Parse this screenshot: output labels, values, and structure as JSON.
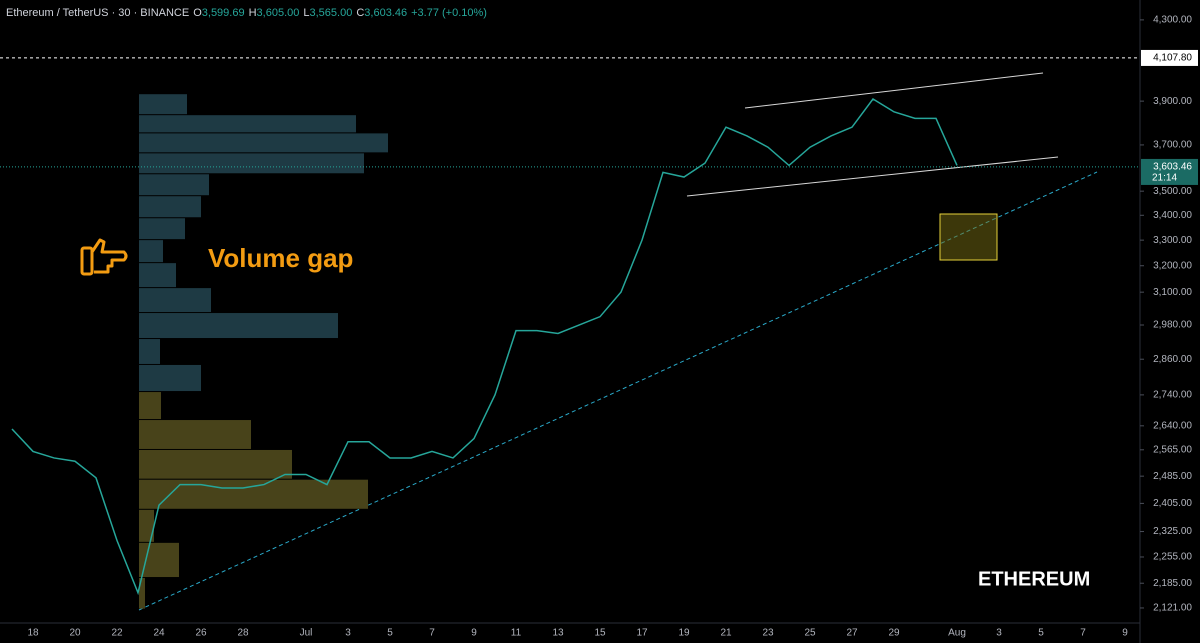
{
  "chart_data": {
    "type": "line",
    "title": "Ethereum / TetherUS · 30 · BINANCE",
    "ohlc": [
      {
        "name": "O",
        "label": "3,599.69"
      },
      {
        "name": "H",
        "label": "3,605.00"
      },
      {
        "name": "L",
        "label": "3,565.00"
      },
      {
        "name": "C",
        "label": "3,603.46"
      }
    ],
    "change": "+3.77 (+0.10%)",
    "categories": [
      null,
      "18",
      null,
      "20",
      null,
      "22",
      null,
      "24",
      null,
      "26",
      null,
      "28",
      null,
      null,
      "Jul",
      null,
      "3",
      null,
      "5",
      null,
      "7",
      null,
      "9",
      null,
      "11",
      null,
      "13",
      null,
      "15",
      null,
      "17",
      null,
      "19",
      null,
      "21",
      null,
      "23",
      null,
      "25",
      null,
      "27",
      null,
      "29",
      null,
      null,
      "Aug",
      null,
      "3",
      null,
      "5",
      null,
      "7",
      null,
      "9"
    ],
    "series": [
      {
        "name": "ETHUSDT",
        "color": "#26a69a",
        "values": [
          2630,
          2560,
          2540,
          2530,
          2480,
          2300,
          2160,
          2400,
          2460,
          2460,
          2450,
          2450,
          2460,
          2490,
          2490,
          2460,
          2590,
          2590,
          2540,
          2540,
          2560,
          2540,
          2600,
          2740,
          2960,
          2960,
          2950,
          2980,
          3010,
          3100,
          3300,
          3580,
          3560,
          3620,
          3780,
          3740,
          3690,
          3610,
          3690,
          3740,
          3780,
          3910,
          3850,
          3820,
          3820,
          3610,
          null,
          null,
          null,
          null,
          null,
          null,
          null,
          null
        ]
      }
    ],
    "log_scale": true,
    "ylim": [
      2083,
      4404
    ],
    "yticks": [
      {
        "value": 4300,
        "label": "4,300.00"
      },
      {
        "value": 3900,
        "label": "3,900.00"
      },
      {
        "value": 3700,
        "label": "3,700.00"
      },
      {
        "value": 3500,
        "label": "3,500.00"
      },
      {
        "value": 3400,
        "label": "3,400.00"
      },
      {
        "value": 3300,
        "label": "3,300.00"
      },
      {
        "value": 3200,
        "label": "3,200.00"
      },
      {
        "value": 3100,
        "label": "3,100.00"
      },
      {
        "value": 2980,
        "label": "2,980.00"
      },
      {
        "value": 2860,
        "label": "2,860.00"
      },
      {
        "value": 2740,
        "label": "2,740.00"
      },
      {
        "value": 2640,
        "label": "2,640.00"
      },
      {
        "value": 2565,
        "label": "2,565.00"
      },
      {
        "value": 2485,
        "label": "2,485.00"
      },
      {
        "value": 2405,
        "label": "2,405.00"
      },
      {
        "value": 2325,
        "label": "2,325.00"
      },
      {
        "value": 2255,
        "label": "2,255.00"
      },
      {
        "value": 2185,
        "label": "2,185.00"
      },
      {
        "value": 2121,
        "label": "2,121.00"
      }
    ],
    "level_line": {
      "value": 4107.8,
      "label": "4,107.80"
    },
    "last_price": {
      "value": 3603.46,
      "label": "3,603.46"
    },
    "countdown": "21:14",
    "volume_profile": [
      {
        "color": "#1e3a44",
        "bins": [
          3935,
          3837,
          3754,
          3665,
          3574,
          3481,
          3390,
          3302,
          3212,
          3117,
          3025,
          2932,
          2842,
          2751
        ],
        "values": [
          48,
          217,
          249,
          225,
          70,
          62,
          46,
          24,
          37,
          72,
          199,
          21,
          62
        ]
      },
      {
        "color": "#48431a",
        "bins": [
          2751,
          2660,
          2566,
          2476,
          2388,
          2295,
          2200,
          2118
        ],
        "values": [
          22,
          112,
          153,
          229,
          15,
          40,
          6
        ]
      }
    ],
    "annotations": [
      "Volume gap",
      "ETHEREUM"
    ]
  }
}
